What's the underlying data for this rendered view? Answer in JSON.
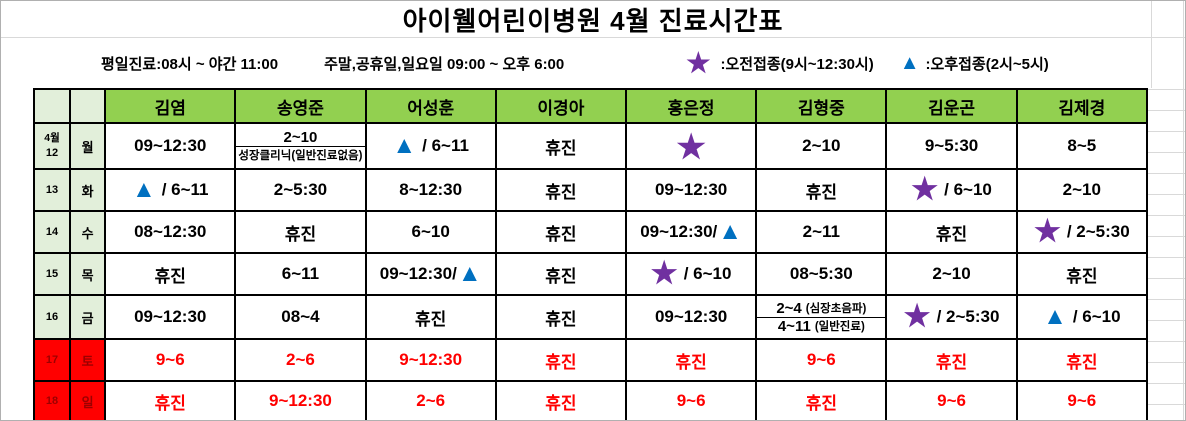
{
  "title": "아이웰어린이병원 4월 진료시간표",
  "legend": {
    "weekday_hours": "평일진료:08시 ~ 야간 11:00",
    "weekend_hours": "주말,공휴일,일요일 09:00 ~ 오후 6:00",
    "star_label": ":오전접종(9시~12:30시)",
    "triangle_label": ":오후접종(2시~5시)"
  },
  "icons": {
    "star": "★",
    "triangle": "▲"
  },
  "colors": {
    "header_green": "#92d050",
    "light_green": "#e2efda",
    "weekend_bg": "#ff0000",
    "weekend_daytext": "#9c0000",
    "red_text": "#ff0000",
    "star_purple": "#7030a0",
    "triangle_blue": "#0070c0"
  },
  "table": {
    "month_label": "4월",
    "doctors": [
      "김염",
      "송영준",
      "어성훈",
      "이경아",
      "홍은정",
      "김형중",
      "김운곤",
      "김제경"
    ],
    "rows": [
      {
        "date": "12",
        "day": "월",
        "weekend": false,
        "show_month": true,
        "cells": [
          {
            "t": "09~12:30"
          },
          {
            "split": [
              {
                "main": "2~10",
                "note": ""
              },
              {
                "main": "",
                "note": "성장클리닉(일반진료없음)"
              }
            ]
          },
          {
            "icon": "triangle",
            "pos": "before",
            "t": "/ 6~11"
          },
          {
            "t": "휴진"
          },
          {
            "icon": "star",
            "pos": "only",
            "t": ""
          },
          {
            "t": "2~10"
          },
          {
            "t": "9~5:30"
          },
          {
            "t": "8~5"
          }
        ]
      },
      {
        "date": "13",
        "day": "화",
        "weekend": false,
        "show_month": false,
        "cells": [
          {
            "icon": "triangle",
            "pos": "before",
            "t": "/ 6~11"
          },
          {
            "t": "2~5:30"
          },
          {
            "t": "8~12:30"
          },
          {
            "t": "휴진"
          },
          {
            "t": "09~12:30"
          },
          {
            "t": "휴진"
          },
          {
            "icon": "star",
            "pos": "before",
            "t": "/ 6~10"
          },
          {
            "t": "2~10"
          }
        ]
      },
      {
        "date": "14",
        "day": "수",
        "weekend": false,
        "show_month": false,
        "cells": [
          {
            "t": "08~12:30"
          },
          {
            "t": "휴진"
          },
          {
            "t": "6~10"
          },
          {
            "t": "휴진"
          },
          {
            "icon": "triangle",
            "pos": "after",
            "t": "09~12:30/"
          },
          {
            "t": "2~11"
          },
          {
            "t": "휴진"
          },
          {
            "icon": "star",
            "pos": "before",
            "t": "/ 2~5:30"
          }
        ]
      },
      {
        "date": "15",
        "day": "목",
        "weekend": false,
        "show_month": false,
        "cells": [
          {
            "t": "휴진"
          },
          {
            "t": "6~11"
          },
          {
            "icon": "triangle",
            "pos": "after",
            "t": "09~12:30/"
          },
          {
            "t": "휴진"
          },
          {
            "icon": "star",
            "pos": "before",
            "t": "/ 6~10"
          },
          {
            "t": "08~5:30"
          },
          {
            "t": "2~10"
          },
          {
            "t": "휴진"
          }
        ]
      },
      {
        "date": "16",
        "day": "금",
        "weekend": false,
        "show_month": false,
        "cells": [
          {
            "t": "09~12:30"
          },
          {
            "t": "08~4"
          },
          {
            "t": "휴진"
          },
          {
            "t": "휴진"
          },
          {
            "t": "09~12:30"
          },
          {
            "split": [
              {
                "main": "2~4",
                "note": "(심장초음파)"
              },
              {
                "main": "4~11",
                "note": "(일반진료)"
              }
            ]
          },
          {
            "icon": "star",
            "pos": "before",
            "t": "/ 2~5:30"
          },
          {
            "icon": "triangle",
            "pos": "before",
            "t": "/ 6~10"
          }
        ]
      },
      {
        "date": "17",
        "day": "토",
        "weekend": true,
        "show_month": false,
        "cells": [
          {
            "t": "9~6"
          },
          {
            "t": "2~6"
          },
          {
            "t": "9~12:30"
          },
          {
            "t": "휴진"
          },
          {
            "t": "휴진"
          },
          {
            "t": "9~6"
          },
          {
            "t": "휴진"
          },
          {
            "t": "휴진"
          }
        ]
      },
      {
        "date": "18",
        "day": "일",
        "weekend": true,
        "show_month": false,
        "cells": [
          {
            "t": "휴진"
          },
          {
            "t": "9~12:30"
          },
          {
            "t": "2~6"
          },
          {
            "t": "휴진"
          },
          {
            "t": "9~6"
          },
          {
            "t": "휴진"
          },
          {
            "t": "9~6"
          },
          {
            "t": "9~6"
          }
        ]
      }
    ]
  }
}
